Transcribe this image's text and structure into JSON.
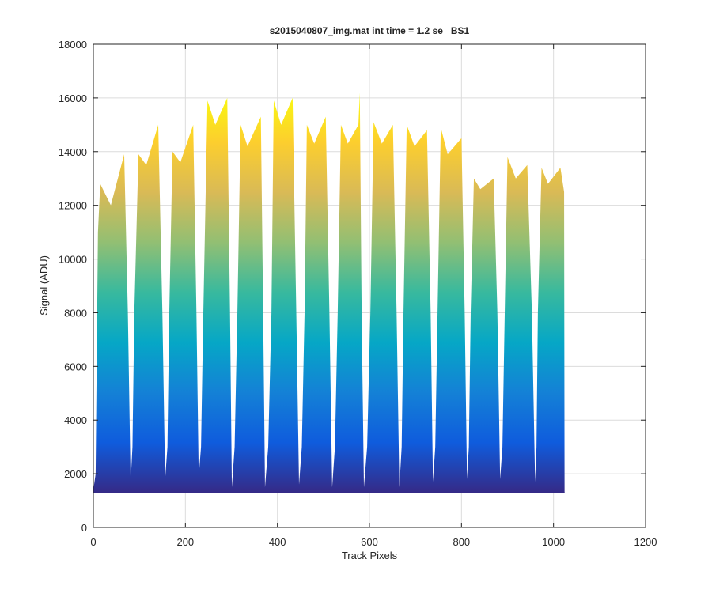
{
  "chart_data": {
    "type": "area",
    "title": "s2015040807_img.mat int time = 1.2 se   BS1",
    "xlabel": "Track Pixels",
    "ylabel": "Signal (ADU)",
    "x": [
      0,
      5,
      10,
      15,
      38,
      67,
      75,
      81,
      85,
      89,
      98,
      115,
      141,
      150,
      156,
      161,
      165,
      172,
      189,
      217,
      224,
      229,
      234,
      239,
      248,
      265,
      291,
      297,
      301,
      307,
      313,
      320,
      335,
      364,
      369,
      373,
      380,
      387,
      392,
      408,
      433,
      441,
      447,
      453,
      459,
      464,
      480,
      505,
      513,
      519,
      525,
      531,
      538,
      553,
      576,
      579,
      583,
      588,
      595,
      602,
      609,
      627,
      651,
      659,
      665,
      670,
      674,
      681,
      698,
      725,
      733,
      738,
      743,
      748,
      755,
      770,
      800,
      807,
      812,
      816,
      820,
      827,
      841,
      870,
      878,
      884,
      889,
      894,
      900,
      918,
      943,
      953,
      960,
      963,
      966,
      974,
      988,
      1015,
      1023,
      1024
    ],
    "values": [
      1400,
      2000,
      11000,
      12800,
      12000,
      13900,
      8000,
      1700,
      3000,
      8000,
      13900,
      13500,
      15000,
      8000,
      1800,
      3000,
      8000,
      14000,
      13600,
      15000,
      8000,
      1900,
      3000,
      8000,
      15900,
      15000,
      16000,
      8000,
      1500,
      3000,
      8000,
      15000,
      14200,
      15300,
      8000,
      1500,
      3000,
      8000,
      15900,
      15000,
      16000,
      8000,
      1600,
      3000,
      8000,
      15000,
      14300,
      15300,
      8000,
      1500,
      3000,
      8000,
      15000,
      14300,
      15000,
      16200,
      8000,
      1500,
      3000,
      8000,
      15100,
      14300,
      15000,
      8000,
      1500,
      3000,
      8000,
      15000,
      14200,
      14800,
      8000,
      1700,
      3000,
      8000,
      14900,
      13900,
      14500,
      8000,
      1800,
      3000,
      8000,
      13000,
      12600,
      13000,
      8000,
      1800,
      3000,
      8000,
      13800,
      13000,
      13500,
      8000,
      1700,
      3000,
      8000,
      13400,
      12800,
      13400,
      12500,
      1300
    ],
    "baseline": 1300,
    "colormap": "parula",
    "xlim": [
      0,
      1200
    ],
    "xticks": [
      0,
      200,
      400,
      600,
      800,
      1000,
      1200
    ],
    "ylim": [
      0,
      18000
    ],
    "yticks": [
      0,
      2000,
      4000,
      6000,
      8000,
      10000,
      12000,
      14000,
      16000,
      18000
    ],
    "grid": true
  }
}
